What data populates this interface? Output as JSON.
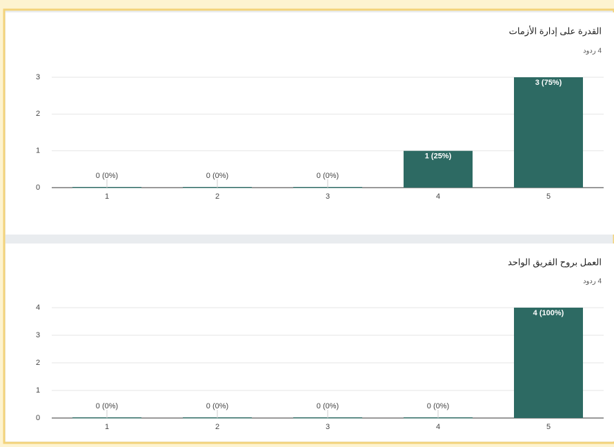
{
  "chart_data": [
    {
      "type": "bar",
      "title": "القدرة على إدارة الأزمات",
      "subtitle": "4 ردود",
      "categories": [
        "1",
        "2",
        "3",
        "4",
        "5"
      ],
      "values": [
        0,
        0,
        0,
        1,
        3
      ],
      "value_labels": [
        "0 (0%)",
        "0 (0%)",
        "0 (0%)",
        "1 (25%)",
        "3 (75%)"
      ],
      "color": "#2d6a63",
      "ylim": [
        0,
        3
      ],
      "yticks": [
        0,
        1,
        2,
        3
      ],
      "grid": true
    },
    {
      "type": "bar",
      "title": "العمل بروح الفريق الواحد",
      "subtitle": "4 ردود",
      "categories": [
        "1",
        "2",
        "3",
        "4",
        "5"
      ],
      "values": [
        0,
        0,
        0,
        0,
        4
      ],
      "value_labels": [
        "0 (0%)",
        "0 (0%)",
        "0 (0%)",
        "0 (0%)",
        "4 (100%)"
      ],
      "color": "#2d6a63",
      "ylim": [
        0,
        4
      ],
      "yticks": [
        0,
        1,
        2,
        3,
        4
      ],
      "grid": true
    }
  ]
}
